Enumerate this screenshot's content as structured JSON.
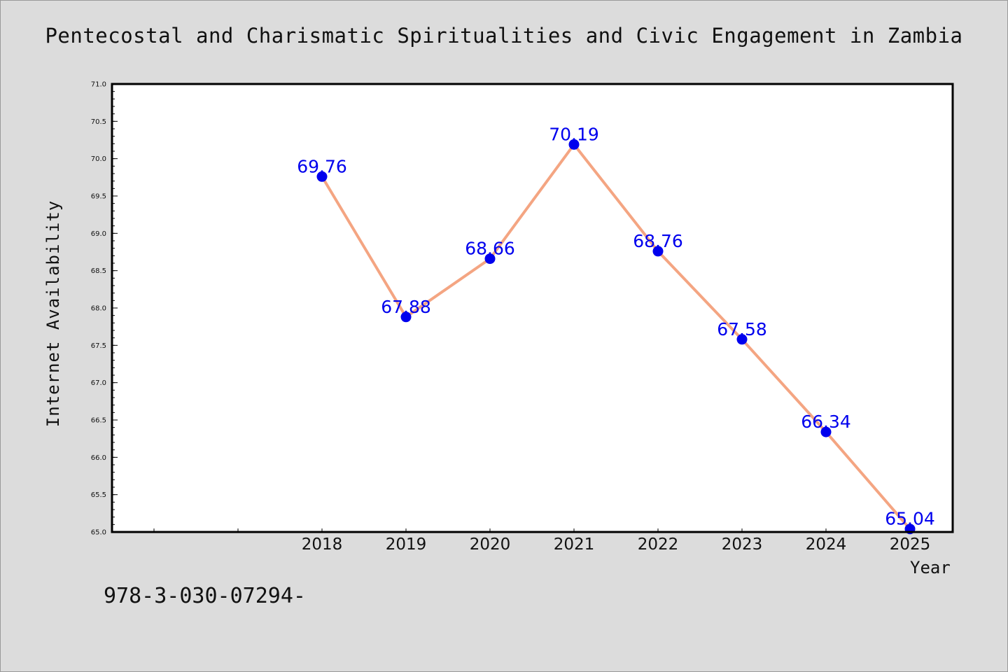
{
  "chart_data": {
    "type": "line",
    "title": "Pentecostal and Charismatic Spiritualities and Civic Engagement in Zambia",
    "xlabel": "Year",
    "ylabel": "Internet Availability",
    "categories": [
      "2018",
      "2019",
      "2020",
      "2021",
      "2022",
      "2023",
      "2024",
      "2025"
    ],
    "series": [
      {
        "values": [
          69.76,
          67.88,
          68.66,
          70.19,
          68.76,
          67.58,
          66.34,
          65.04
        ],
        "labels": [
          "69.76",
          "67.88",
          "68.66",
          "70.19",
          "68.76",
          "67.58",
          "66.34",
          "65.04"
        ]
      }
    ],
    "ylim": [
      65.0,
      71.0
    ],
    "yticks": [
      "65.0",
      "65.5",
      "66.0",
      "66.5",
      "67.0",
      "67.5",
      "68.0",
      "68.5",
      "69.0",
      "69.5",
      "70.0",
      "70.5",
      "71.0"
    ],
    "grid": false,
    "legend": "none",
    "colors": {
      "line": "#f4a582",
      "marker": "#0000ee",
      "data_label": "#0000ee",
      "background": "#dcdcdc",
      "plot_background": "#ffffff"
    }
  },
  "footer_text": "978-3-030-07294-"
}
